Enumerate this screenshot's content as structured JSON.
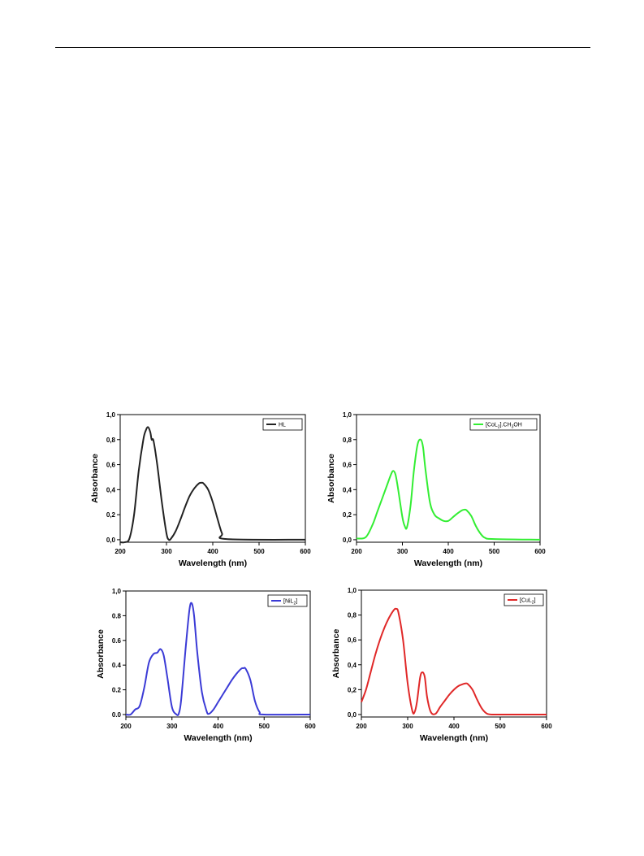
{
  "page": {
    "header_rule": true
  },
  "chart_data": [
    {
      "type": "line",
      "xlabel": "Wavelength (nm)",
      "ylabel": "Absorbance",
      "xlim": [
        200,
        600
      ],
      "ylim": [
        -0.02,
        1.0
      ],
      "xticks": [
        "200",
        "300",
        "400",
        "500",
        "600"
      ],
      "yticks": [
        "0,0",
        "0,2",
        "0,4",
        "0,6",
        "0,8",
        "1,0"
      ],
      "legend_position": "top-right",
      "series": [
        {
          "name": "HL",
          "legend_main": "HL",
          "legend_sub": "",
          "legend_tail": "",
          "color": "#222222",
          "x": [
            200,
            210,
            220,
            230,
            240,
            250,
            255,
            260,
            265,
            268,
            272,
            280,
            290,
            300,
            305,
            310,
            320,
            330,
            340,
            350,
            360,
            370,
            375,
            380,
            390,
            400,
            410,
            420,
            430,
            600
          ],
          "y": [
            -0.02,
            -0.02,
            0.01,
            0.2,
            0.55,
            0.8,
            0.87,
            0.9,
            0.86,
            0.8,
            0.79,
            0.6,
            0.3,
            0.05,
            0.0,
            0.01,
            0.07,
            0.16,
            0.26,
            0.35,
            0.41,
            0.45,
            0.455,
            0.45,
            0.4,
            0.3,
            0.17,
            0.05,
            0.005,
            0.0
          ]
        }
      ]
    },
    {
      "type": "line",
      "xlabel": "Wavelength (nm)",
      "ylabel": "Absorbance",
      "xlim": [
        200,
        600
      ],
      "ylim": [
        -0.02,
        1.0
      ],
      "xticks": [
        "200",
        "300",
        "400",
        "500",
        "600"
      ],
      "yticks": [
        "0,0",
        "0,2",
        "0,4",
        "0,6",
        "0,8",
        "1,0"
      ],
      "legend_position": "top-right",
      "series": [
        {
          "name": "[CoL2].CH3OH",
          "legend_main": "[CoL",
          "legend_sub": "2",
          "legend_tail": "].CH",
          "legend_sub2": "3",
          "legend_tail2": "OH",
          "color": "#33ee33",
          "x": [
            200,
            220,
            235,
            245,
            255,
            265,
            275,
            280,
            285,
            290,
            300,
            305,
            310,
            318,
            325,
            333,
            340,
            345,
            350,
            360,
            370,
            380,
            390,
            400,
            410,
            420,
            430,
            435,
            440,
            450,
            460,
            470,
            480,
            500,
            600
          ],
          "y": [
            0.01,
            0.02,
            0.12,
            0.22,
            0.32,
            0.42,
            0.52,
            0.55,
            0.52,
            0.42,
            0.18,
            0.11,
            0.1,
            0.28,
            0.55,
            0.76,
            0.8,
            0.74,
            0.57,
            0.3,
            0.2,
            0.17,
            0.15,
            0.15,
            0.18,
            0.21,
            0.235,
            0.24,
            0.235,
            0.19,
            0.11,
            0.05,
            0.015,
            0.005,
            0.0
          ]
        }
      ]
    },
    {
      "type": "line",
      "xlabel": "Wavelength (nm)",
      "ylabel": "Absorbance",
      "xlim": [
        200,
        600
      ],
      "ylim": [
        -0.02,
        1.0
      ],
      "xticks": [
        "200",
        "300",
        "400",
        "500",
        "600"
      ],
      "yticks": [
        "0.0",
        "0.2",
        "0.4",
        "0.6",
        "0.8",
        "1,0"
      ],
      "legend_position": "top-right",
      "series": [
        {
          "name": "[NiL2]",
          "legend_main": "[NiL",
          "legend_sub": "2",
          "legend_tail": "]",
          "color": "#3b3bd6",
          "x": [
            200,
            210,
            220,
            230,
            240,
            250,
            260,
            268,
            275,
            282,
            290,
            300,
            310,
            315,
            320,
            330,
            338,
            343,
            348,
            355,
            365,
            375,
            380,
            390,
            400,
            410,
            420,
            430,
            440,
            450,
            455,
            460,
            470,
            480,
            490,
            500,
            600
          ],
          "y": [
            0.0,
            0.0,
            0.04,
            0.07,
            0.22,
            0.42,
            0.49,
            0.5,
            0.53,
            0.48,
            0.3,
            0.06,
            0.0,
            0.01,
            0.12,
            0.55,
            0.85,
            0.9,
            0.8,
            0.5,
            0.18,
            0.03,
            0.005,
            0.04,
            0.1,
            0.16,
            0.22,
            0.28,
            0.33,
            0.37,
            0.375,
            0.37,
            0.28,
            0.11,
            0.02,
            0.0,
            0.0
          ]
        }
      ]
    },
    {
      "type": "line",
      "xlabel": "Wavelength (nm)",
      "ylabel": "Absorbance",
      "xlim": [
        200,
        600
      ],
      "ylim": [
        -0.02,
        1.0
      ],
      "xticks": [
        "200",
        "300",
        "400",
        "500",
        "600"
      ],
      "yticks": [
        "0,0",
        "0,2",
        "0,4",
        "0,6",
        "0,8",
        "1,0"
      ],
      "legend_position": "top-right",
      "series": [
        {
          "name": "[CuL2]",
          "legend_main": "[CuL",
          "legend_sub": "2",
          "legend_tail": "]",
          "color": "#e02828",
          "x": [
            200,
            210,
            220,
            230,
            240,
            250,
            260,
            270,
            275,
            280,
            290,
            300,
            310,
            315,
            320,
            327,
            332,
            337,
            342,
            350,
            360,
            370,
            380,
            390,
            400,
            410,
            420,
            425,
            430,
            440,
            450,
            460,
            470,
            480,
            500,
            600
          ],
          "y": [
            0.1,
            0.2,
            0.34,
            0.48,
            0.6,
            0.7,
            0.78,
            0.84,
            0.85,
            0.82,
            0.6,
            0.25,
            0.03,
            0.02,
            0.1,
            0.3,
            0.34,
            0.3,
            0.14,
            0.02,
            0.005,
            0.06,
            0.11,
            0.16,
            0.2,
            0.23,
            0.245,
            0.25,
            0.245,
            0.2,
            0.12,
            0.05,
            0.01,
            0.0,
            0.0,
            0.0
          ]
        }
      ]
    }
  ]
}
